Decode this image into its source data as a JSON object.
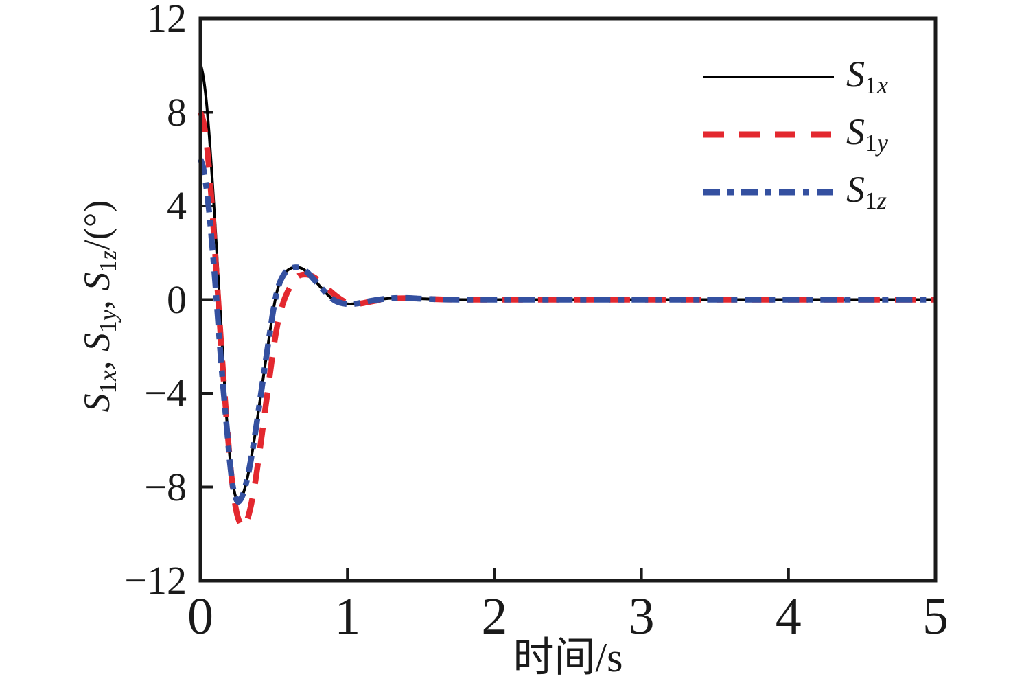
{
  "figure": {
    "background": "#ffffff",
    "spine_color": "#1a1a1a"
  },
  "chart_data": {
    "type": "line",
    "title": "",
    "xlabel": "时间/s",
    "ylabel": "S1x, S1y, S1z/(°)",
    "ylabel_parts": [
      {
        "text": "S",
        "sub": "1x"
      },
      {
        "text": ", "
      },
      {
        "text": "S",
        "sub": "1y"
      },
      {
        "text": ", "
      },
      {
        "text": "S",
        "sub": "1z"
      },
      {
        "text": "/(°)"
      }
    ],
    "xlim": [
      0,
      5
    ],
    "ylim": [
      -12,
      12
    ],
    "xticks": [
      0,
      1,
      2,
      3,
      4,
      5
    ],
    "yticks": [
      12,
      8,
      4,
      0,
      -4,
      -8,
      -12
    ],
    "grid": false,
    "legend_position": "top-right",
    "series": [
      {
        "name": "S1x",
        "label_main": "S",
        "label_sub": "1x",
        "color": "#000000",
        "line_style": "solid",
        "line_width": 4,
        "points": [
          [
            0,
            10.1
          ],
          [
            0.02,
            9.5
          ],
          [
            0.04,
            8.5
          ],
          [
            0.06,
            7.0
          ],
          [
            0.08,
            5.2
          ],
          [
            0.1,
            3.2
          ],
          [
            0.12,
            1.1
          ],
          [
            0.14,
            -1.0
          ],
          [
            0.16,
            -3.2
          ],
          [
            0.18,
            -5.2
          ],
          [
            0.2,
            -6.7
          ],
          [
            0.22,
            -7.8
          ],
          [
            0.24,
            -8.42
          ],
          [
            0.26,
            -8.62
          ],
          [
            0.29,
            -8.3
          ],
          [
            0.32,
            -7.6
          ],
          [
            0.35,
            -6.6
          ],
          [
            0.38,
            -5.4
          ],
          [
            0.41,
            -4.1
          ],
          [
            0.44,
            -2.8
          ],
          [
            0.47,
            -1.5
          ],
          [
            0.5,
            -0.3
          ],
          [
            0.53,
            0.55
          ],
          [
            0.57,
            1.1
          ],
          [
            0.61,
            1.32
          ],
          [
            0.65,
            1.38
          ],
          [
            0.69,
            1.33
          ],
          [
            0.73,
            1.15
          ],
          [
            0.77,
            0.88
          ],
          [
            0.82,
            0.52
          ],
          [
            0.87,
            0.18
          ],
          [
            0.92,
            -0.06
          ],
          [
            0.97,
            -0.16
          ],
          [
            1.02,
            -0.19
          ],
          [
            1.07,
            -0.16
          ],
          [
            1.12,
            -0.1
          ],
          [
            1.2,
            -0.01
          ],
          [
            1.3,
            0.06
          ],
          [
            1.4,
            0.07
          ],
          [
            1.5,
            0.04
          ],
          [
            1.65,
            0.01
          ],
          [
            1.8,
            0
          ],
          [
            2,
            0
          ],
          [
            2.5,
            0
          ],
          [
            3,
            0
          ],
          [
            3.5,
            0
          ],
          [
            4,
            0
          ],
          [
            4.5,
            0
          ],
          [
            5,
            0
          ]
        ]
      },
      {
        "name": "S1y",
        "label_main": "S",
        "label_sub": "1y",
        "color": "#e3282f",
        "line_style": "dashed",
        "line_width": 8.5,
        "points": [
          [
            0,
            8.0
          ],
          [
            0.02,
            7.6
          ],
          [
            0.04,
            6.8
          ],
          [
            0.06,
            5.5
          ],
          [
            0.08,
            3.9
          ],
          [
            0.1,
            2.0
          ],
          [
            0.12,
            0.1
          ],
          [
            0.14,
            -1.8
          ],
          [
            0.16,
            -3.6
          ],
          [
            0.18,
            -5.3
          ],
          [
            0.2,
            -6.8
          ],
          [
            0.22,
            -8.0
          ],
          [
            0.245,
            -9.05
          ],
          [
            0.27,
            -9.55
          ],
          [
            0.29,
            -9.7
          ],
          [
            0.315,
            -9.45
          ],
          [
            0.34,
            -8.9
          ],
          [
            0.37,
            -7.9
          ],
          [
            0.4,
            -6.6
          ],
          [
            0.43,
            -5.2
          ],
          [
            0.46,
            -3.8
          ],
          [
            0.49,
            -2.4
          ],
          [
            0.52,
            -1.2
          ],
          [
            0.55,
            -0.4
          ],
          [
            0.58,
            0.15
          ],
          [
            0.62,
            0.65
          ],
          [
            0.66,
            0.98
          ],
          [
            0.7,
            1.07
          ],
          [
            0.74,
            1.05
          ],
          [
            0.78,
            0.93
          ],
          [
            0.83,
            0.68
          ],
          [
            0.88,
            0.38
          ],
          [
            0.93,
            0.12
          ],
          [
            0.98,
            -0.08
          ],
          [
            1.03,
            -0.16
          ],
          [
            1.08,
            -0.17
          ],
          [
            1.13,
            -0.12
          ],
          [
            1.2,
            -0.04
          ],
          [
            1.3,
            0.04
          ],
          [
            1.4,
            0.06
          ],
          [
            1.5,
            0.04
          ],
          [
            1.65,
            0.01
          ],
          [
            1.8,
            0
          ],
          [
            2,
            0
          ],
          [
            2.5,
            0
          ],
          [
            3,
            0
          ],
          [
            3.5,
            0
          ],
          [
            4,
            0
          ],
          [
            4.5,
            0
          ],
          [
            5,
            0
          ]
        ]
      },
      {
        "name": "S1z",
        "label_main": "S",
        "label_sub": "1z",
        "color": "#3450a0",
        "line_style": "dash-dot",
        "line_width": 8.5,
        "points": [
          [
            0,
            6.0
          ],
          [
            0.02,
            5.6
          ],
          [
            0.04,
            4.8
          ],
          [
            0.06,
            3.7
          ],
          [
            0.08,
            2.3
          ],
          [
            0.1,
            0.8
          ],
          [
            0.12,
            -0.9
          ],
          [
            0.14,
            -2.6
          ],
          [
            0.16,
            -4.1
          ],
          [
            0.18,
            -5.5
          ],
          [
            0.2,
            -6.9
          ],
          [
            0.22,
            -7.95
          ],
          [
            0.24,
            -8.45
          ],
          [
            0.26,
            -8.62
          ],
          [
            0.29,
            -8.3
          ],
          [
            0.32,
            -7.6
          ],
          [
            0.35,
            -6.6
          ],
          [
            0.38,
            -5.4
          ],
          [
            0.41,
            -4.1
          ],
          [
            0.44,
            -2.8
          ],
          [
            0.47,
            -1.5
          ],
          [
            0.5,
            -0.3
          ],
          [
            0.53,
            0.55
          ],
          [
            0.57,
            1.1
          ],
          [
            0.61,
            1.32
          ],
          [
            0.65,
            1.38
          ],
          [
            0.69,
            1.33
          ],
          [
            0.73,
            1.15
          ],
          [
            0.77,
            0.88
          ],
          [
            0.82,
            0.52
          ],
          [
            0.87,
            0.18
          ],
          [
            0.92,
            -0.06
          ],
          [
            0.97,
            -0.16
          ],
          [
            1.02,
            -0.19
          ],
          [
            1.07,
            -0.16
          ],
          [
            1.12,
            -0.1
          ],
          [
            1.2,
            -0.01
          ],
          [
            1.3,
            0.06
          ],
          [
            1.4,
            0.07
          ],
          [
            1.5,
            0.04
          ],
          [
            1.65,
            0.01
          ],
          [
            1.8,
            0
          ],
          [
            2,
            0
          ],
          [
            2.5,
            0
          ],
          [
            3,
            0
          ],
          [
            3.5,
            0
          ],
          [
            4,
            0
          ],
          [
            4.5,
            0
          ],
          [
            5,
            0
          ]
        ]
      }
    ]
  }
}
